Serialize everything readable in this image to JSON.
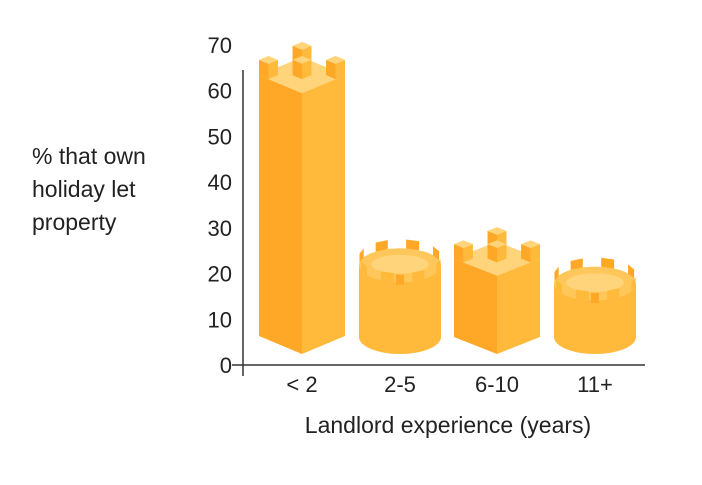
{
  "chart_data": {
    "type": "bar",
    "title": "",
    "ylabel_lines": [
      "% that own",
      "holiday let",
      "property"
    ],
    "xlabel": "Landlord experience (years)",
    "categories": [
      "< 2",
      "2-5",
      "6-10",
      "11+"
    ],
    "shapes": [
      "tower-square",
      "tower-round",
      "tower-square",
      "tower-round"
    ],
    "values": [
      61,
      24,
      21,
      20
    ],
    "ylim": [
      0,
      70
    ],
    "yticks": [
      0,
      10,
      20,
      30,
      40,
      50,
      60,
      70
    ],
    "grid": false,
    "legend": "none",
    "colors": {
      "front": "#ffba3c",
      "side": "#ffa726",
      "top": "#ffd47a",
      "top_dark": "#ffc75a",
      "axis": "#333333"
    }
  }
}
